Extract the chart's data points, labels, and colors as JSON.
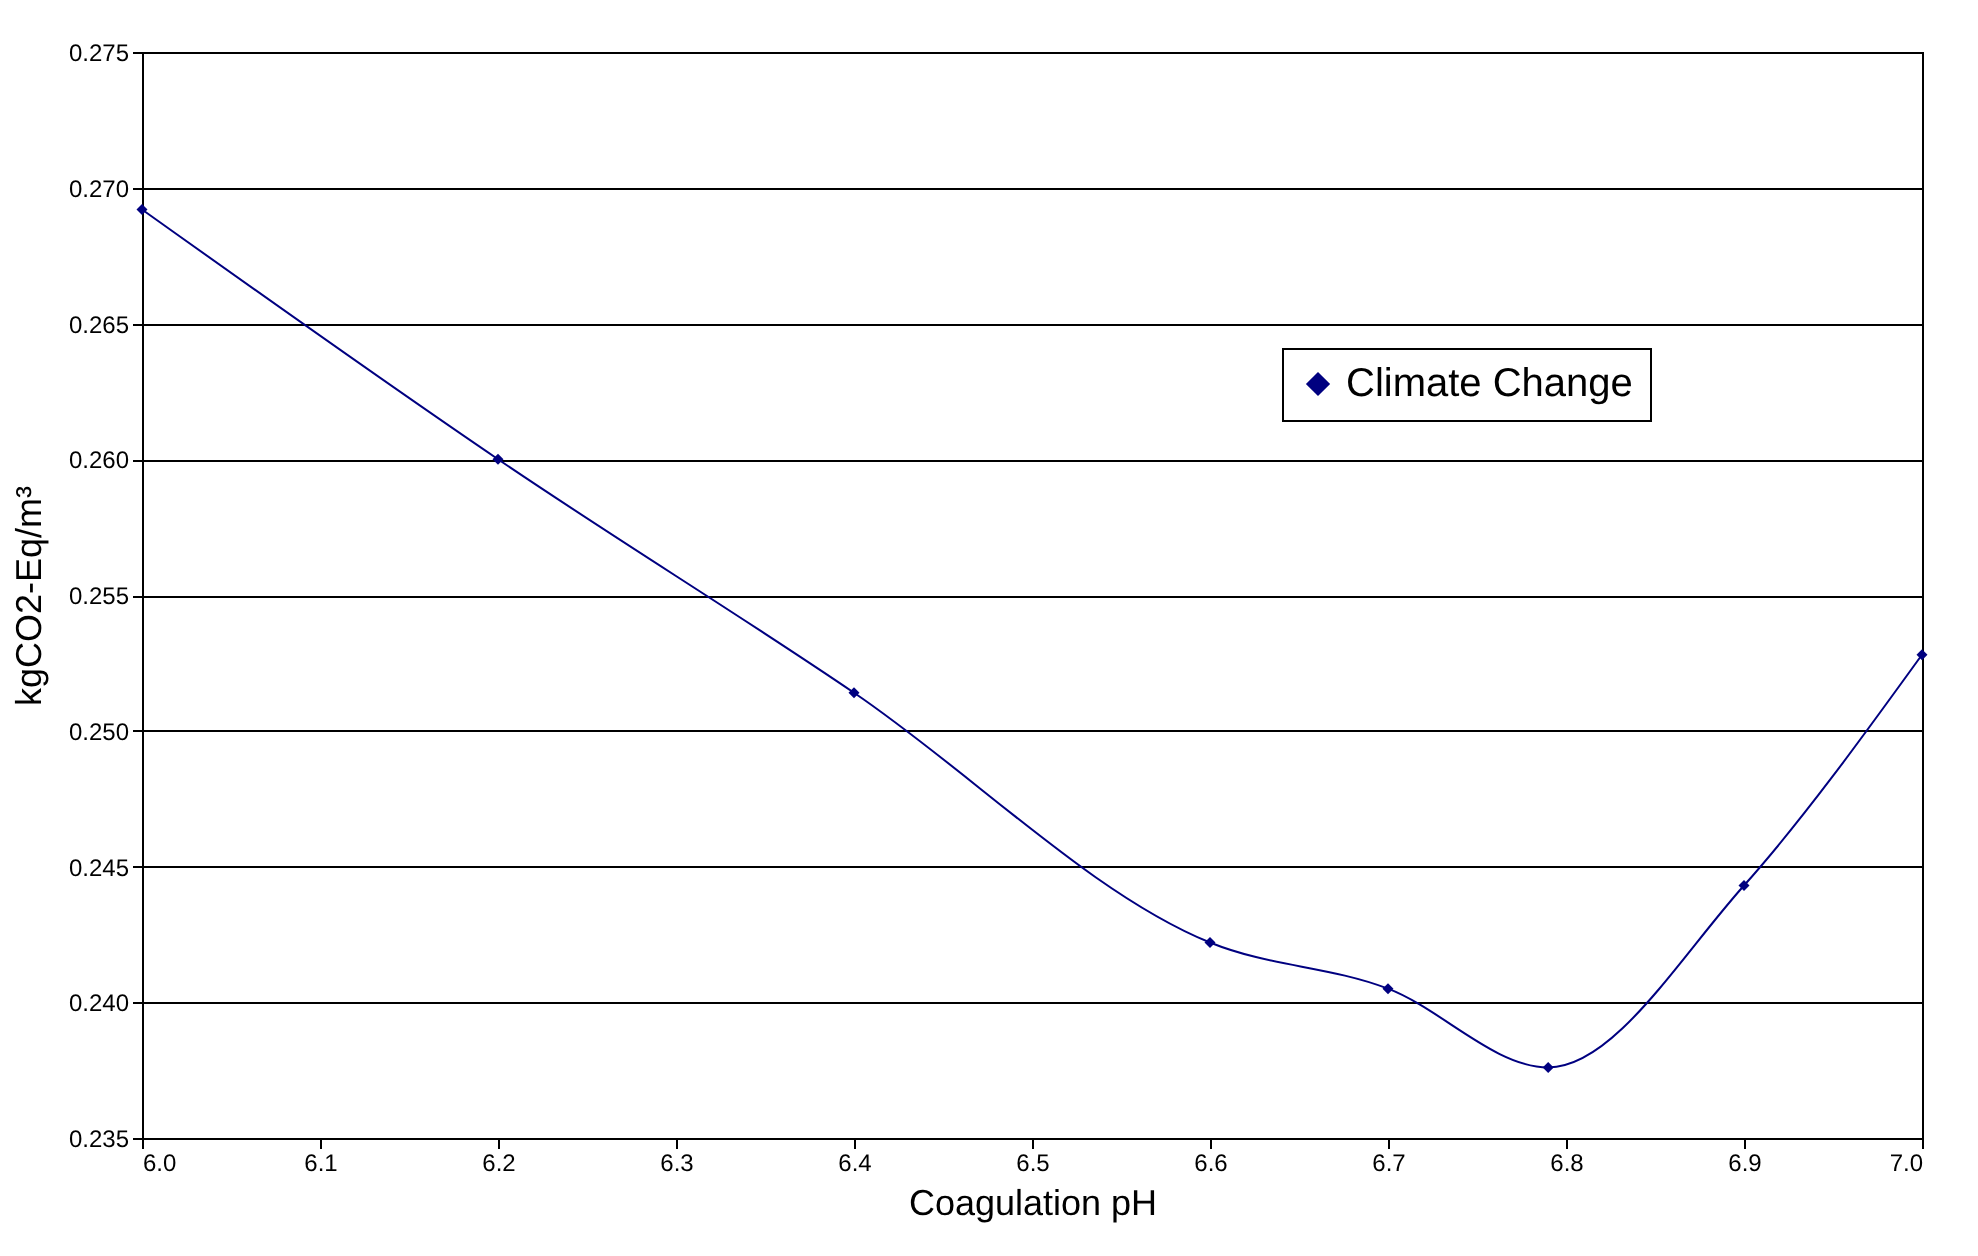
{
  "chart_data": {
    "type": "line",
    "xlabel": "Coagulation pH",
    "ylabel": "kgCO2-Eq/m³",
    "x": [
      6.0,
      6.2,
      6.4,
      6.6,
      6.7,
      6.79,
      6.9,
      7.0
    ],
    "series": [
      {
        "name": "Climate Change",
        "color": "#000080",
        "values": [
          0.2692,
          0.26,
          0.2514,
          0.2422,
          0.2405,
          0.2376,
          0.2443,
          0.2528
        ]
      }
    ],
    "xlim": [
      6.0,
      7.0
    ],
    "xticks": [
      {
        "value": 6.0,
        "label": "6.0"
      },
      {
        "value": 6.1,
        "label": "6.1"
      },
      {
        "value": 6.2,
        "label": "6.2"
      },
      {
        "value": 6.3,
        "label": "6.3"
      },
      {
        "value": 6.4,
        "label": "6.4"
      },
      {
        "value": 6.5,
        "label": "6.5"
      },
      {
        "value": 6.6,
        "label": "6.6"
      },
      {
        "value": 6.7,
        "label": "6.7"
      },
      {
        "value": 6.8,
        "label": "6.8"
      },
      {
        "value": 6.9,
        "label": "6.9"
      },
      {
        "value": 7.0,
        "label": "7.0"
      }
    ],
    "ylim": [
      0.235,
      0.275
    ],
    "yticks": [
      {
        "value": 0.235,
        "label": "0.235"
      },
      {
        "value": 0.24,
        "label": "0.240"
      },
      {
        "value": 0.245,
        "label": "0.245"
      },
      {
        "value": 0.25,
        "label": "0.250"
      },
      {
        "value": 0.255,
        "label": "0.255"
      },
      {
        "value": 0.26,
        "label": "0.260"
      },
      {
        "value": 0.265,
        "label": "0.265"
      },
      {
        "value": 0.27,
        "label": "0.270"
      },
      {
        "value": 0.275,
        "label": "0.275"
      }
    ],
    "grid": "y",
    "legend": "top right",
    "marker": "diamond",
    "line_style": "solid"
  }
}
